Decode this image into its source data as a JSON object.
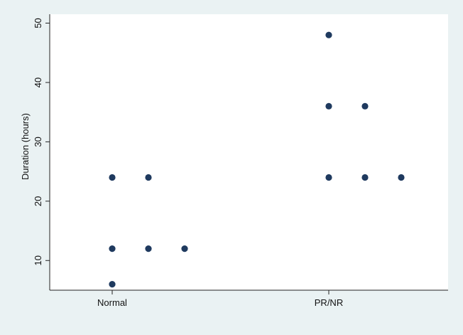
{
  "chart_data": {
    "type": "scatter",
    "title": "",
    "xlabel": "",
    "ylabel": "Duration (hours)",
    "categories": [
      "Normal",
      "PR/NR"
    ],
    "ylim": [
      5,
      51.5
    ],
    "yticks": [
      10,
      20,
      30,
      40,
      50
    ],
    "grid": false,
    "legend": "none",
    "point_color": "#1f3a5f",
    "background_color": "#eaf2f3",
    "points": [
      {
        "category": "Normal",
        "y": 24
      },
      {
        "category": "Normal",
        "y": 24
      },
      {
        "category": "Normal",
        "y": 12
      },
      {
        "category": "Normal",
        "y": 12
      },
      {
        "category": "Normal",
        "y": 12
      },
      {
        "category": "Normal",
        "y": 6
      },
      {
        "category": "PR/NR",
        "y": 48
      },
      {
        "category": "PR/NR",
        "y": 36
      },
      {
        "category": "PR/NR",
        "y": 36
      },
      {
        "category": "PR/NR",
        "y": 24
      },
      {
        "category": "PR/NR",
        "y": 24
      },
      {
        "category": "PR/NR",
        "y": 24
      }
    ]
  }
}
